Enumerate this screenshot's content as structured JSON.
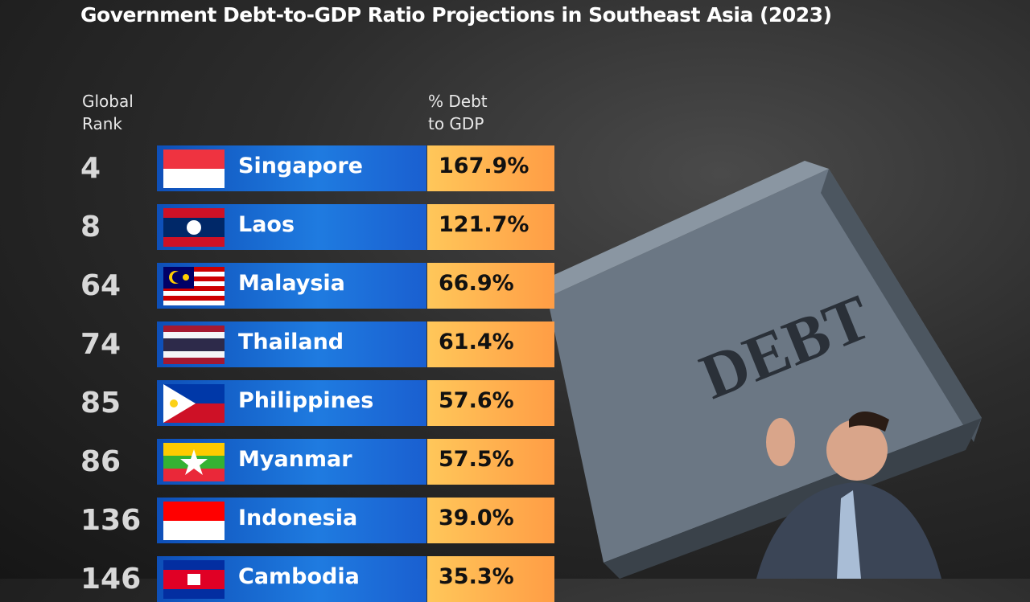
{
  "header": {
    "title": "Government Debt-to-GDP Ratio Projections in Southeast Asia (2023)"
  },
  "table": {
    "columns": [
      "Global Rank",
      "% Debt to GDP"
    ],
    "rows": [
      [
        "4",
        "Singapore",
        "167.9%"
      ],
      [
        "8",
        "Laos",
        "121.7%"
      ],
      [
        "64",
        "Malaysia",
        "66.9%"
      ],
      [
        "74",
        "Thailand",
        "61.4%"
      ],
      [
        "85",
        "Philippines",
        "57.6%"
      ],
      [
        "86",
        "Myanmar",
        "57.5%"
      ],
      [
        "136",
        "Indonesia",
        "39.0%"
      ],
      [
        "146",
        "Cambodia",
        "35.3%"
      ]
    ]
  },
  "illustration": {
    "label": "DEBT"
  }
}
